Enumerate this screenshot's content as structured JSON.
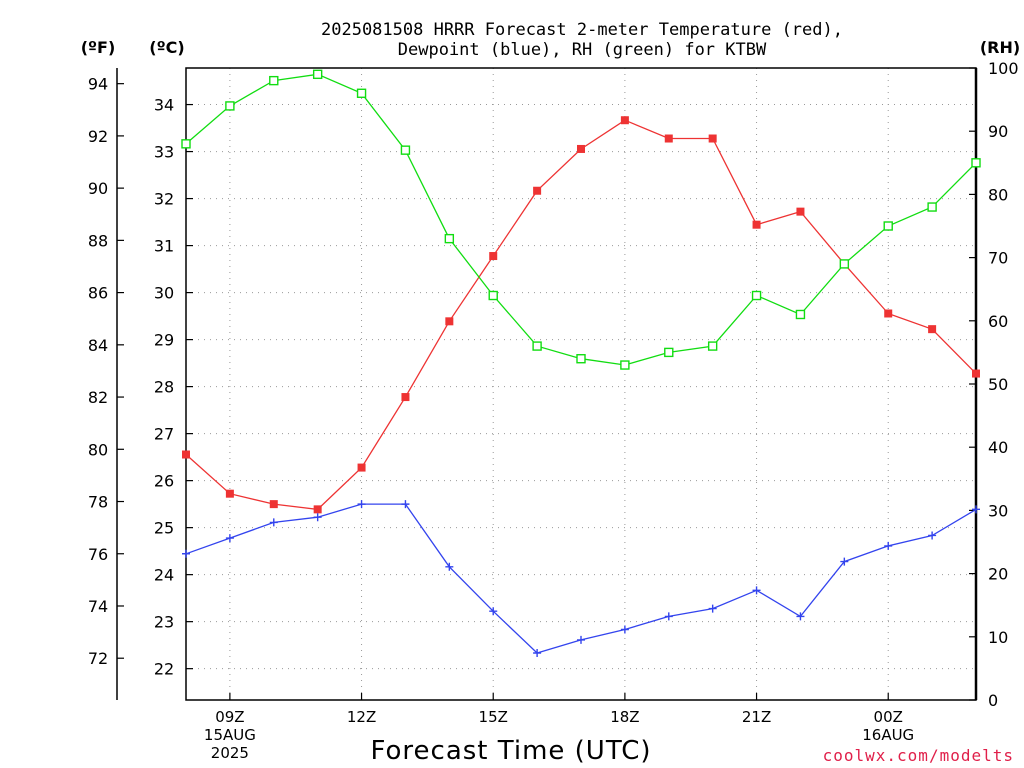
{
  "chart_data": {
    "type": "line",
    "title_lines": [
      "2025081508 HRRR Forecast 2-meter Temperature (red),",
      "Dewpoint (blue), RH (green) for KTBW"
    ],
    "unit_labels": {
      "fahrenheit": "(ºF)",
      "celsius": "(ºC)",
      "rh": "(RH)"
    },
    "xlabel": "Forecast Time (UTC)",
    "credit": "coolwx.com/modelts",
    "x_hours": [
      8,
      9,
      10,
      11,
      12,
      13,
      14,
      15,
      16,
      17,
      18,
      19,
      20,
      21,
      22,
      23,
      24,
      25,
      26
    ],
    "x_ticks": [
      {
        "hour": 9,
        "lines": [
          "09Z",
          "15AUG",
          "2025"
        ]
      },
      {
        "hour": 12,
        "lines": [
          "12Z"
        ]
      },
      {
        "hour": 15,
        "lines": [
          "15Z"
        ]
      },
      {
        "hour": 18,
        "lines": [
          "18Z"
        ]
      },
      {
        "hour": 21,
        "lines": [
          "21Z"
        ]
      },
      {
        "hour": 24,
        "lines": [
          "00Z",
          "16AUG"
        ]
      }
    ],
    "temp_f_axis": {
      "min": 70.4,
      "max": 94.6,
      "ticks": [
        72,
        74,
        76,
        78,
        80,
        82,
        84,
        86,
        88,
        90,
        92,
        94
      ]
    },
    "temp_c_axis": {
      "ticks": [
        22,
        23,
        24,
        25,
        26,
        27,
        28,
        29,
        30,
        31,
        32,
        33,
        34
      ]
    },
    "rh_axis": {
      "min": 0,
      "max": 100,
      "ticks": [
        0,
        10,
        20,
        30,
        40,
        50,
        60,
        70,
        80,
        90,
        100
      ]
    },
    "series": [
      {
        "name": "Temperature",
        "axis": "temp_f",
        "color": "#ee3333",
        "marker": "filled-square",
        "values": [
          79.8,
          78.3,
          77.9,
          77.7,
          79.3,
          82.0,
          84.9,
          87.4,
          89.9,
          91.5,
          92.6,
          91.9,
          91.9,
          88.6,
          89.1,
          87.1,
          85.2,
          84.6,
          82.9
        ]
      },
      {
        "name": "Dewpoint",
        "axis": "temp_f",
        "color": "#3344ee",
        "marker": "plus",
        "values": [
          76.0,
          76.6,
          77.2,
          77.4,
          77.9,
          77.9,
          75.5,
          73.8,
          72.2,
          72.7,
          73.1,
          73.6,
          73.9,
          74.6,
          73.6,
          75.7,
          76.3,
          76.7,
          77.7
        ]
      },
      {
        "name": "RH",
        "axis": "rh",
        "color": "#11dd11",
        "marker": "open-square",
        "values": [
          88,
          94,
          98,
          99,
          96,
          87,
          73,
          64,
          56,
          54,
          53,
          55,
          56,
          64,
          61,
          69,
          75,
          78,
          85
        ]
      }
    ]
  }
}
